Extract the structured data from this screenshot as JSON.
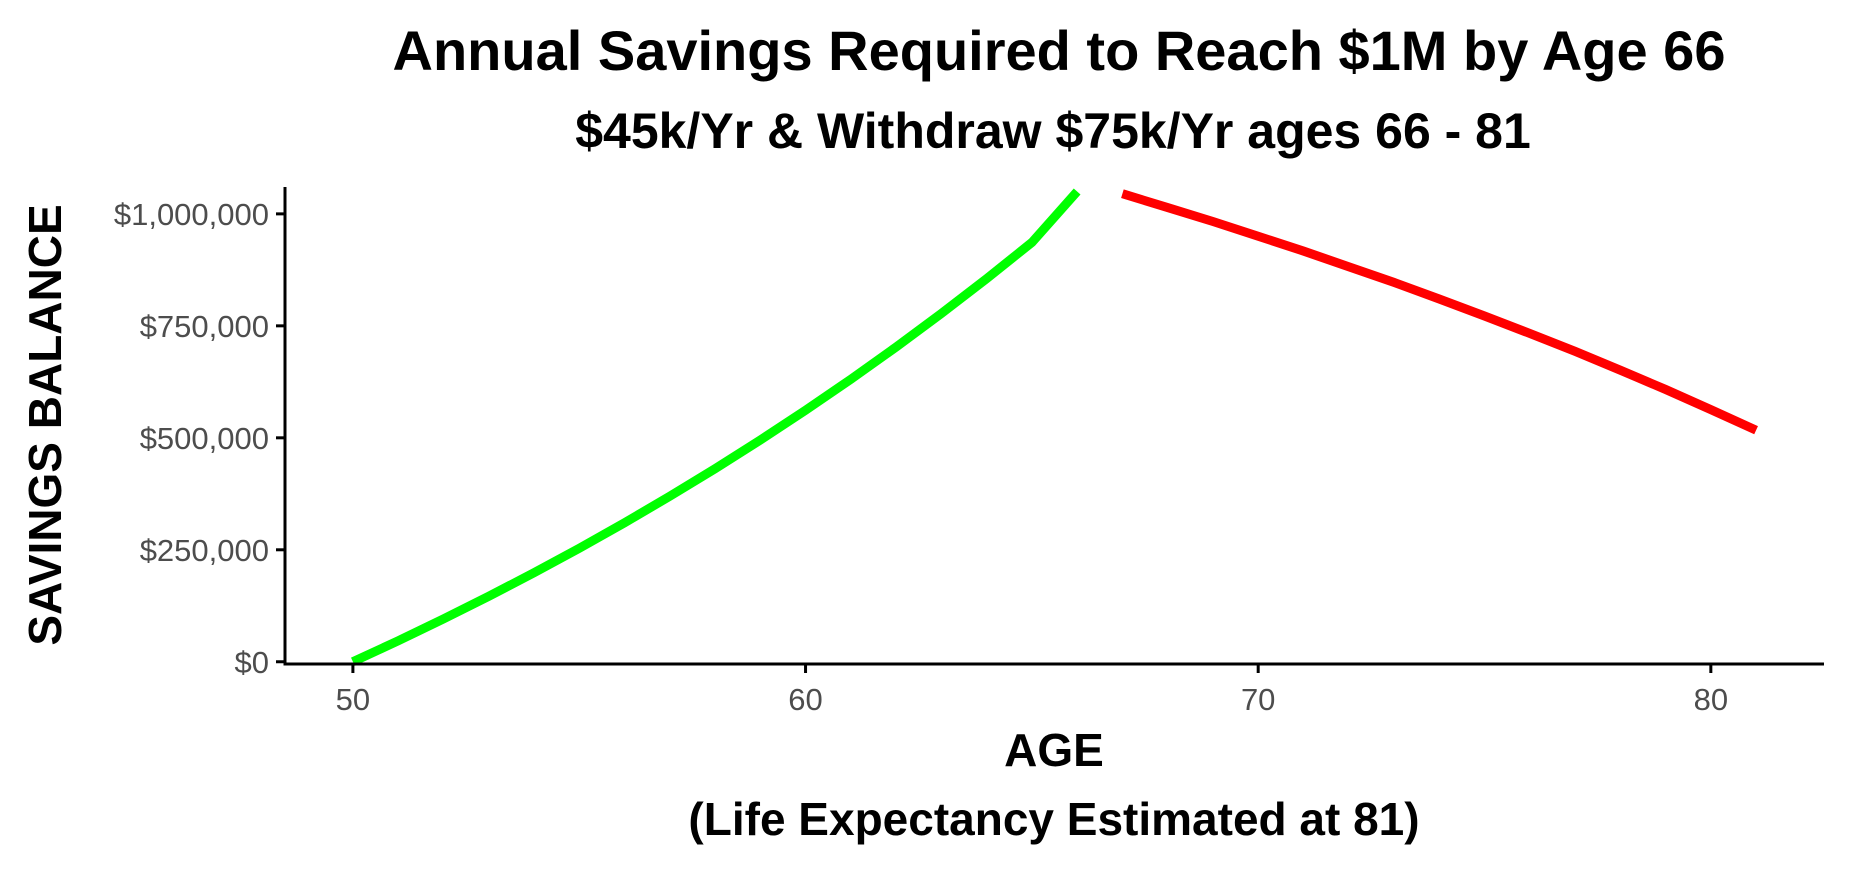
{
  "chart_data": {
    "type": "line",
    "title": "Annual Savings Required to Reach $1M by Age 66",
    "subtitle": "$45k/Yr & Withdraw $75k/Yr ages 66 - 81",
    "xlabel": "AGE",
    "xlabel_note": "(Life Expectancy Estimated at 81)",
    "ylabel": "SAVINGS BALANCE",
    "xlim": [
      48.5,
      82.5
    ],
    "ylim": [
      -5000,
      1060000
    ],
    "x_ticks": [
      50,
      60,
      70,
      80
    ],
    "x_tick_labels": [
      "50",
      "60",
      "70",
      "80"
    ],
    "y_ticks": [
      0,
      250000,
      500000,
      750000,
      1000000
    ],
    "y_tick_labels": [
      "$0",
      "$250,000",
      "$500,000",
      "$750,000",
      "$1,000,000"
    ],
    "grid": false,
    "legend": "none",
    "series": [
      {
        "color": "#00ff00",
        "x": [
          50,
          51,
          52,
          53,
          54,
          55,
          56,
          57,
          58,
          59,
          60,
          61,
          62,
          63,
          64,
          65,
          66
        ],
        "y": [
          0,
          46800,
          95500,
          146100,
          198700,
          253400,
          310300,
          369500,
          431000,
          495000,
          561500,
          630700,
          702700,
          777500,
          855300,
          936200,
          1050000
        ]
      },
      {
        "color": "#ff0000",
        "x": [
          67,
          68,
          69,
          70,
          71,
          72,
          73,
          74,
          75,
          76,
          77,
          78,
          79,
          80,
          81
        ],
        "y": [
          1045000,
          1014000,
          983000,
          950000,
          917000,
          882000,
          847000,
          810000,
          772000,
          733000,
          693000,
          651000,
          608000,
          563000,
          517000
        ]
      }
    ]
  }
}
